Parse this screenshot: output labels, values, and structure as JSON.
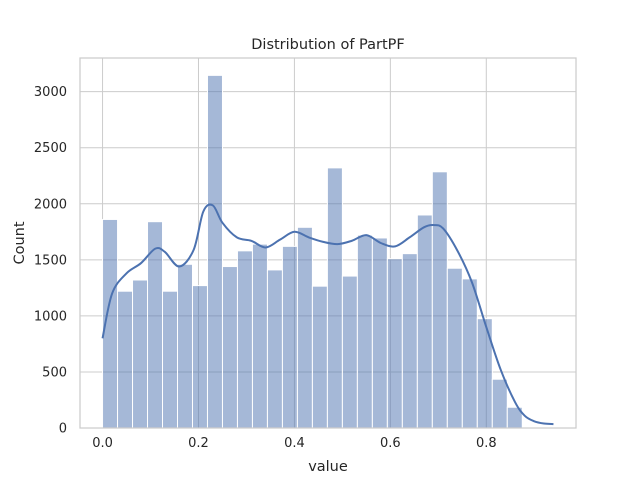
{
  "chart_data": {
    "type": "bar",
    "title": "Distribution of PartPF",
    "xlabel": "value",
    "ylabel": "Count",
    "xlim": [
      -0.047,
      0.987
    ],
    "ylim": [
      0,
      3300
    ],
    "xticks": [
      0.0,
      0.2,
      0.4,
      0.6,
      0.8
    ],
    "xtick_labels": [
      "0.0",
      "0.2",
      "0.4",
      "0.6",
      "0.8"
    ],
    "yticks": [
      0,
      500,
      1000,
      1500,
      2000,
      2500,
      3000
    ],
    "ytick_labels": [
      "0",
      "500",
      "1000",
      "1500",
      "2000",
      "2500",
      "3000"
    ],
    "grid": true,
    "bin_start": 0.0,
    "bin_width": 0.03125,
    "bar_color": "#4c72b0",
    "kde_color": "#4c72b0",
    "counts": [
      1860,
      1220,
      1320,
      1840,
      1220,
      1460,
      1270,
      3145,
      1440,
      1580,
      1640,
      1410,
      1620,
      1790,
      1265,
      2320,
      1355,
      1720,
      1695,
      1510,
      1555,
      1900,
      2285,
      1425,
      1330,
      975,
      435,
      185
    ],
    "kde": {
      "x": [
        0.0,
        0.02,
        0.05,
        0.08,
        0.11,
        0.13,
        0.16,
        0.19,
        0.21,
        0.23,
        0.25,
        0.28,
        0.31,
        0.34,
        0.37,
        0.4,
        0.43,
        0.46,
        0.49,
        0.52,
        0.55,
        0.58,
        0.61,
        0.64,
        0.67,
        0.69,
        0.71,
        0.74,
        0.77,
        0.8,
        0.83,
        0.86,
        0.88,
        0.9,
        0.92,
        0.94
      ],
      "y": [
        800,
        1200,
        1380,
        1470,
        1600,
        1570,
        1440,
        1590,
        1930,
        1985,
        1830,
        1700,
        1670,
        1610,
        1680,
        1750,
        1700,
        1660,
        1640,
        1670,
        1720,
        1650,
        1620,
        1700,
        1790,
        1810,
        1780,
        1580,
        1300,
        900,
        520,
        230,
        110,
        60,
        40,
        35
      ]
    }
  }
}
